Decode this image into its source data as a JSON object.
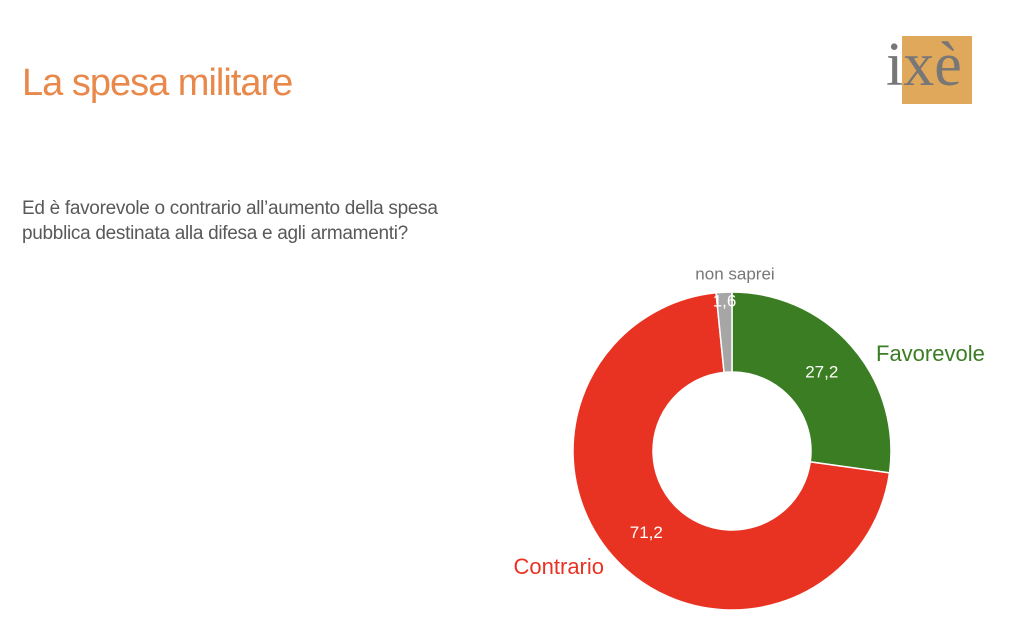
{
  "logo": "ixè",
  "chart_data": {
    "type": "donut",
    "title": "La spesa militare",
    "subtitle": "Ed è favorevole o contrario all’aumento della spesa pubblica destinata alla difesa e agli armamenti?",
    "categories": [
      "Favorevole",
      "Contrario",
      "non saprei"
    ],
    "values": [
      27.2,
      71.2,
      1.6
    ],
    "value_labels": [
      "27,2",
      "71,2",
      "1,6"
    ],
    "colors": [
      "#3a7d23",
      "#e83323",
      "#a6a6a6"
    ]
  }
}
